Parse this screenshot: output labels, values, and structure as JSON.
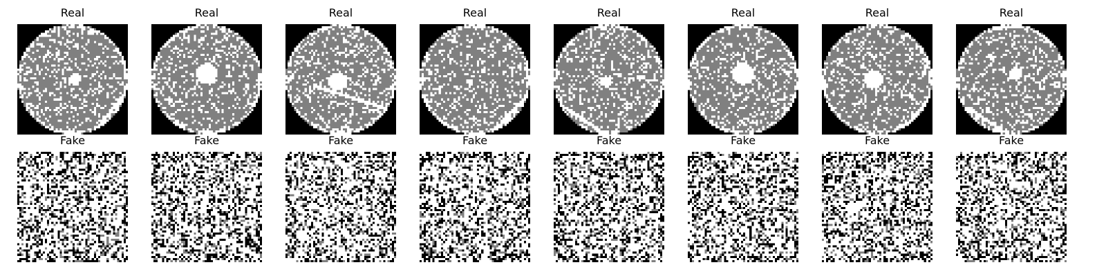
{
  "rows": [
    {
      "label": "Real",
      "kind": "wafer",
      "hole_sizes": [
        0.11,
        0.19,
        0.17,
        0.06,
        0.1,
        0.2,
        0.17,
        0.12
      ]
    },
    {
      "label": "Fake",
      "kind": "noise"
    }
  ],
  "columns": 8
}
